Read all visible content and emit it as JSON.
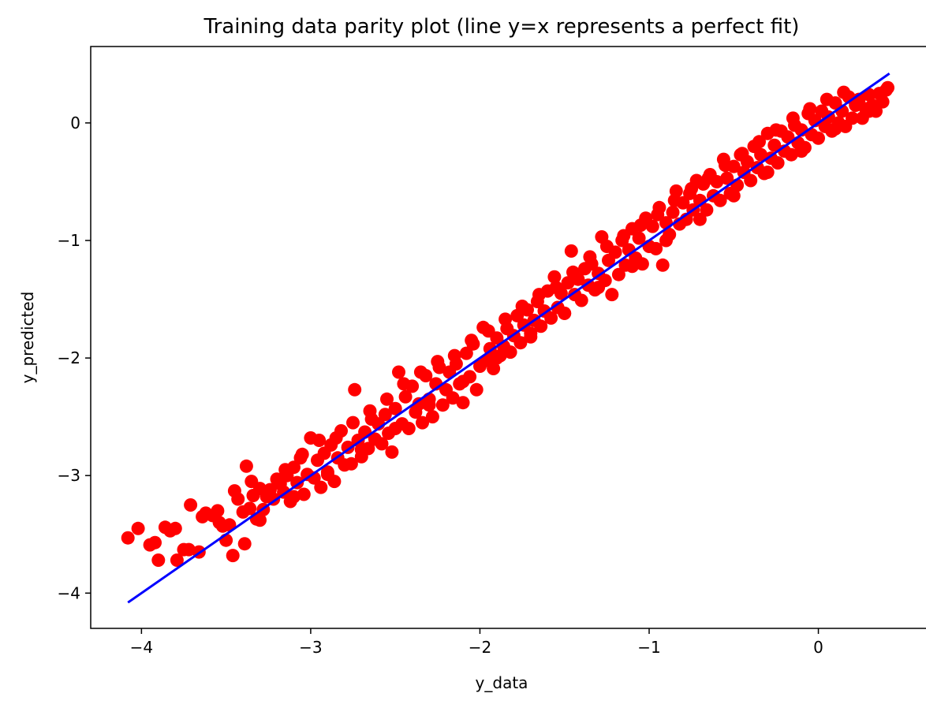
{
  "chart_data": {
    "type": "scatter",
    "title": "Training data parity plot (line y=x represents a perfect fit)",
    "xlabel": "y_data",
    "ylabel": "y_predicted",
    "xlim": [
      -4.3,
      0.65
    ],
    "ylim": [
      -4.3,
      0.65
    ],
    "grid": false,
    "legend": "none",
    "xticks": [
      {
        "value": -4,
        "label": "−4"
      },
      {
        "value": -3,
        "label": "−3"
      },
      {
        "value": -2,
        "label": "−2"
      },
      {
        "value": -1,
        "label": "−1"
      },
      {
        "value": 0,
        "label": "0"
      }
    ],
    "yticks": [
      {
        "value": -4,
        "label": "−4"
      },
      {
        "value": -3,
        "label": "−3"
      },
      {
        "value": -2,
        "label": "−2"
      },
      {
        "value": -1,
        "label": "−1"
      },
      {
        "value": 0,
        "label": "0"
      }
    ],
    "reference_line": {
      "x": [
        -4.08,
        0.42
      ],
      "y": [
        -4.08,
        0.42
      ],
      "color": "#0000ff"
    },
    "series": [
      {
        "color": "#ff0000",
        "points": [
          [
            -4.08,
            -3.53
          ],
          [
            -4.02,
            -3.45
          ],
          [
            -3.95,
            -3.59
          ],
          [
            -3.92,
            -3.57
          ],
          [
            -3.9,
            -3.72
          ],
          [
            -3.86,
            -3.44
          ],
          [
            -3.83,
            -3.47
          ],
          [
            -3.8,
            -3.45
          ],
          [
            -3.79,
            -3.72
          ],
          [
            -3.75,
            -3.63
          ],
          [
            -3.72,
            -3.63
          ],
          [
            -3.71,
            -3.25
          ],
          [
            -3.66,
            -3.65
          ],
          [
            -3.64,
            -3.35
          ],
          [
            -3.62,
            -3.32
          ],
          [
            -3.58,
            -3.34
          ],
          [
            -3.54,
            -3.4
          ],
          [
            -3.52,
            -3.43
          ],
          [
            -3.48,
            -3.42
          ],
          [
            -3.46,
            -3.68
          ],
          [
            -3.45,
            -3.13
          ],
          [
            -3.43,
            -3.2
          ],
          [
            -3.4,
            -3.31
          ],
          [
            -3.39,
            -3.58
          ],
          [
            -3.38,
            -2.92
          ],
          [
            -3.36,
            -3.28
          ],
          [
            -3.34,
            -3.17
          ],
          [
            -3.32,
            -3.37
          ],
          [
            -3.3,
            -3.11
          ],
          [
            -3.28,
            -3.29
          ],
          [
            -3.26,
            -3.18
          ],
          [
            -3.24,
            -3.12
          ],
          [
            -3.22,
            -3.2
          ],
          [
            -3.2,
            -3.03
          ],
          [
            -3.18,
            -3.07
          ],
          [
            -3.16,
            -3.14
          ],
          [
            -3.14,
            -3.0
          ],
          [
            -3.12,
            -3.22
          ],
          [
            -3.1,
            -2.93
          ],
          [
            -3.08,
            -3.06
          ],
          [
            -3.06,
            -2.85
          ],
          [
            -3.04,
            -3.16
          ],
          [
            -3.02,
            -2.99
          ],
          [
            -3.0,
            -2.68
          ],
          [
            -2.98,
            -3.02
          ],
          [
            -2.96,
            -2.87
          ],
          [
            -2.94,
            -3.1
          ],
          [
            -2.92,
            -2.81
          ],
          [
            -2.9,
            -2.97
          ],
          [
            -2.88,
            -2.74
          ],
          [
            -2.86,
            -3.05
          ],
          [
            -2.84,
            -2.85
          ],
          [
            -2.82,
            -2.62
          ],
          [
            -2.8,
            -2.91
          ],
          [
            -2.78,
            -2.76
          ],
          [
            -2.76,
            -2.9
          ],
          [
            -2.74,
            -2.27
          ],
          [
            -2.72,
            -2.7
          ],
          [
            -2.7,
            -2.84
          ],
          [
            -2.68,
            -2.63
          ],
          [
            -2.66,
            -2.77
          ],
          [
            -2.64,
            -2.52
          ],
          [
            -2.62,
            -2.69
          ],
          [
            -2.6,
            -2.56
          ],
          [
            -2.58,
            -2.73
          ],
          [
            -2.56,
            -2.48
          ],
          [
            -2.54,
            -2.64
          ],
          [
            -2.52,
            -2.8
          ],
          [
            -2.5,
            -2.43
          ],
          [
            -2.48,
            -2.12
          ],
          [
            -2.46,
            -2.56
          ],
          [
            -2.44,
            -2.33
          ],
          [
            -2.42,
            -2.6
          ],
          [
            -2.4,
            -2.24
          ],
          [
            -2.38,
            -2.46
          ],
          [
            -2.36,
            -2.39
          ],
          [
            -2.34,
            -2.55
          ],
          [
            -2.32,
            -2.15
          ],
          [
            -2.3,
            -2.35
          ],
          [
            -2.28,
            -2.5
          ],
          [
            -2.26,
            -2.22
          ],
          [
            -2.24,
            -2.08
          ],
          [
            -2.22,
            -2.4
          ],
          [
            -2.2,
            -2.27
          ],
          [
            -2.18,
            -2.12
          ],
          [
            -2.16,
            -2.34
          ],
          [
            -2.14,
            -2.05
          ],
          [
            -2.12,
            -2.22
          ],
          [
            -2.1,
            -2.38
          ],
          [
            -2.08,
            -1.96
          ],
          [
            -2.06,
            -2.16
          ],
          [
            -2.04,
            -1.88
          ],
          [
            -2.02,
            -2.27
          ],
          [
            -2.0,
            -2.07
          ],
          [
            -1.98,
            -1.74
          ],
          [
            -1.96,
            -2.02
          ],
          [
            -1.94,
            -1.92
          ],
          [
            -1.92,
            -2.09
          ],
          [
            -1.9,
            -1.83
          ],
          [
            -1.88,
            -1.98
          ],
          [
            -1.86,
            -1.9
          ],
          [
            -1.84,
            -1.75
          ],
          [
            -1.82,
            -1.95
          ],
          [
            -1.8,
            -1.81
          ],
          [
            -1.78,
            -1.64
          ],
          [
            -1.76,
            -1.87
          ],
          [
            -1.74,
            -1.72
          ],
          [
            -1.72,
            -1.59
          ],
          [
            -1.7,
            -1.79
          ],
          [
            -1.68,
            -1.68
          ],
          [
            -1.66,
            -1.52
          ],
          [
            -1.64,
            -1.73
          ],
          [
            -1.62,
            -1.6
          ],
          [
            -1.6,
            -1.43
          ],
          [
            -1.58,
            -1.66
          ],
          [
            -1.56,
            -1.31
          ],
          [
            -1.54,
            -1.57
          ],
          [
            -1.52,
            -1.45
          ],
          [
            -1.5,
            -1.62
          ],
          [
            -1.48,
            -1.36
          ],
          [
            -1.46,
            -1.09
          ],
          [
            -1.44,
            -1.46
          ],
          [
            -1.42,
            -1.33
          ],
          [
            -1.4,
            -1.51
          ],
          [
            -1.38,
            -1.24
          ],
          [
            -1.36,
            -1.38
          ],
          [
            -1.34,
            -1.2
          ],
          [
            -1.32,
            -1.42
          ],
          [
            -1.3,
            -1.28
          ],
          [
            -1.28,
            -0.97
          ],
          [
            -1.26,
            -1.34
          ],
          [
            -1.24,
            -1.17
          ],
          [
            -1.22,
            -1.46
          ],
          [
            -1.2,
            -1.1
          ],
          [
            -1.18,
            -1.29
          ],
          [
            -1.16,
            -1.0
          ],
          [
            -1.14,
            -1.21
          ],
          [
            -1.12,
            -1.08
          ],
          [
            -1.1,
            -0.9
          ],
          [
            -1.08,
            -1.15
          ],
          [
            -1.06,
            -0.98
          ],
          [
            -1.04,
            -1.2
          ],
          [
            -1.02,
            -0.81
          ],
          [
            -1.0,
            -1.05
          ],
          [
            -0.98,
            -0.88
          ],
          [
            -0.96,
            -1.07
          ],
          [
            -0.94,
            -0.72
          ],
          [
            -0.92,
            -1.21
          ],
          [
            -0.9,
            -0.85
          ],
          [
            -0.88,
            -0.95
          ],
          [
            -0.86,
            -0.76
          ],
          [
            -0.84,
            -0.58
          ],
          [
            -0.82,
            -0.86
          ],
          [
            -0.8,
            -0.68
          ],
          [
            -0.78,
            -0.82
          ],
          [
            -0.76,
            -0.6
          ],
          [
            -0.74,
            -0.74
          ],
          [
            -0.72,
            -0.49
          ],
          [
            -0.7,
            -0.66
          ],
          [
            -0.68,
            -0.52
          ],
          [
            -0.66,
            -0.74
          ],
          [
            -0.64,
            -0.44
          ],
          [
            -0.62,
            -0.62
          ],
          [
            -0.6,
            -0.5
          ],
          [
            -0.58,
            -0.66
          ],
          [
            -0.56,
            -0.31
          ],
          [
            -0.54,
            -0.47
          ],
          [
            -0.52,
            -0.6
          ],
          [
            -0.5,
            -0.37
          ],
          [
            -0.48,
            -0.53
          ],
          [
            -0.46,
            -0.27
          ],
          [
            -0.44,
            -0.42
          ],
          [
            -0.42,
            -0.33
          ],
          [
            -0.4,
            -0.49
          ],
          [
            -0.38,
            -0.2
          ],
          [
            -0.36,
            -0.38
          ],
          [
            -0.34,
            -0.27
          ],
          [
            -0.32,
            -0.43
          ],
          [
            -0.3,
            -0.09
          ],
          [
            -0.28,
            -0.3
          ],
          [
            -0.26,
            -0.19
          ],
          [
            -0.24,
            -0.34
          ],
          [
            -0.22,
            -0.07
          ],
          [
            -0.2,
            -0.24
          ],
          [
            -0.18,
            -0.12
          ],
          [
            -0.16,
            -0.27
          ],
          [
            -0.14,
            -0.02
          ],
          [
            -0.12,
            -0.17
          ],
          [
            -0.1,
            -0.06
          ],
          [
            -0.08,
            -0.21
          ],
          [
            -0.06,
            0.08
          ],
          [
            -0.04,
            -0.1
          ],
          [
            -0.02,
            0.02
          ],
          [
            0.0,
            -0.13
          ],
          [
            0.02,
            0.1
          ],
          [
            0.04,
            -0.03
          ],
          [
            0.06,
            0.05
          ],
          [
            0.08,
            -0.07
          ],
          [
            0.1,
            0.17
          ],
          [
            0.12,
            0.0
          ],
          [
            0.14,
            0.1
          ],
          [
            0.16,
            -0.03
          ],
          [
            0.18,
            0.22
          ],
          [
            0.2,
            0.04
          ],
          [
            0.22,
            0.15
          ],
          [
            0.24,
            0.2
          ],
          [
            0.26,
            0.04
          ],
          [
            0.28,
            0.12
          ],
          [
            0.3,
            0.24
          ],
          [
            0.32,
            0.15
          ],
          [
            0.34,
            0.1
          ],
          [
            0.36,
            0.25
          ],
          [
            0.38,
            0.18
          ],
          [
            0.4,
            0.28
          ],
          [
            0.41,
            0.3
          ],
          [
            -3.55,
            -3.3
          ],
          [
            -3.35,
            -3.05
          ],
          [
            -3.15,
            -2.95
          ],
          [
            -3.05,
            -2.82
          ],
          [
            -2.95,
            -2.7
          ],
          [
            -2.85,
            -2.68
          ],
          [
            -2.75,
            -2.55
          ],
          [
            -2.65,
            -2.45
          ],
          [
            -2.55,
            -2.35
          ],
          [
            -2.45,
            -2.22
          ],
          [
            -2.35,
            -2.12
          ],
          [
            -2.25,
            -2.03
          ],
          [
            -2.15,
            -1.98
          ],
          [
            -2.05,
            -1.85
          ],
          [
            -1.95,
            -1.77
          ],
          [
            -1.85,
            -1.67
          ],
          [
            -1.75,
            -1.56
          ],
          [
            -1.65,
            -1.46
          ],
          [
            -1.55,
            -1.4
          ],
          [
            -1.45,
            -1.27
          ],
          [
            -1.35,
            -1.14
          ],
          [
            -1.25,
            -1.05
          ],
          [
            -1.15,
            -0.96
          ],
          [
            -1.05,
            -0.87
          ],
          [
            -0.95,
            -0.78
          ],
          [
            -0.85,
            -0.66
          ],
          [
            -0.75,
            -0.56
          ],
          [
            -0.65,
            -0.47
          ],
          [
            -0.55,
            -0.36
          ],
          [
            -0.45,
            -0.26
          ],
          [
            -0.35,
            -0.16
          ],
          [
            -0.25,
            -0.06
          ],
          [
            -0.15,
            0.04
          ],
          [
            -0.05,
            0.12
          ],
          [
            0.05,
            0.2
          ],
          [
            0.15,
            0.26
          ],
          [
            -3.5,
            -3.55
          ],
          [
            -3.3,
            -3.38
          ],
          [
            -3.1,
            -3.18
          ],
          [
            -2.9,
            -2.99
          ],
          [
            -2.7,
            -2.78
          ],
          [
            -2.5,
            -2.6
          ],
          [
            -2.3,
            -2.4
          ],
          [
            -2.1,
            -2.2
          ],
          [
            -1.9,
            -2.0
          ],
          [
            -1.7,
            -1.82
          ],
          [
            -1.5,
            -1.62
          ],
          [
            -1.3,
            -1.4
          ],
          [
            -1.1,
            -1.22
          ],
          [
            -0.9,
            -1.0
          ],
          [
            -0.7,
            -0.82
          ],
          [
            -0.5,
            -0.62
          ],
          [
            -0.3,
            -0.42
          ],
          [
            -0.1,
            -0.24
          ],
          [
            0.1,
            -0.05
          ],
          [
            0.3,
            0.1
          ]
        ]
      }
    ]
  }
}
